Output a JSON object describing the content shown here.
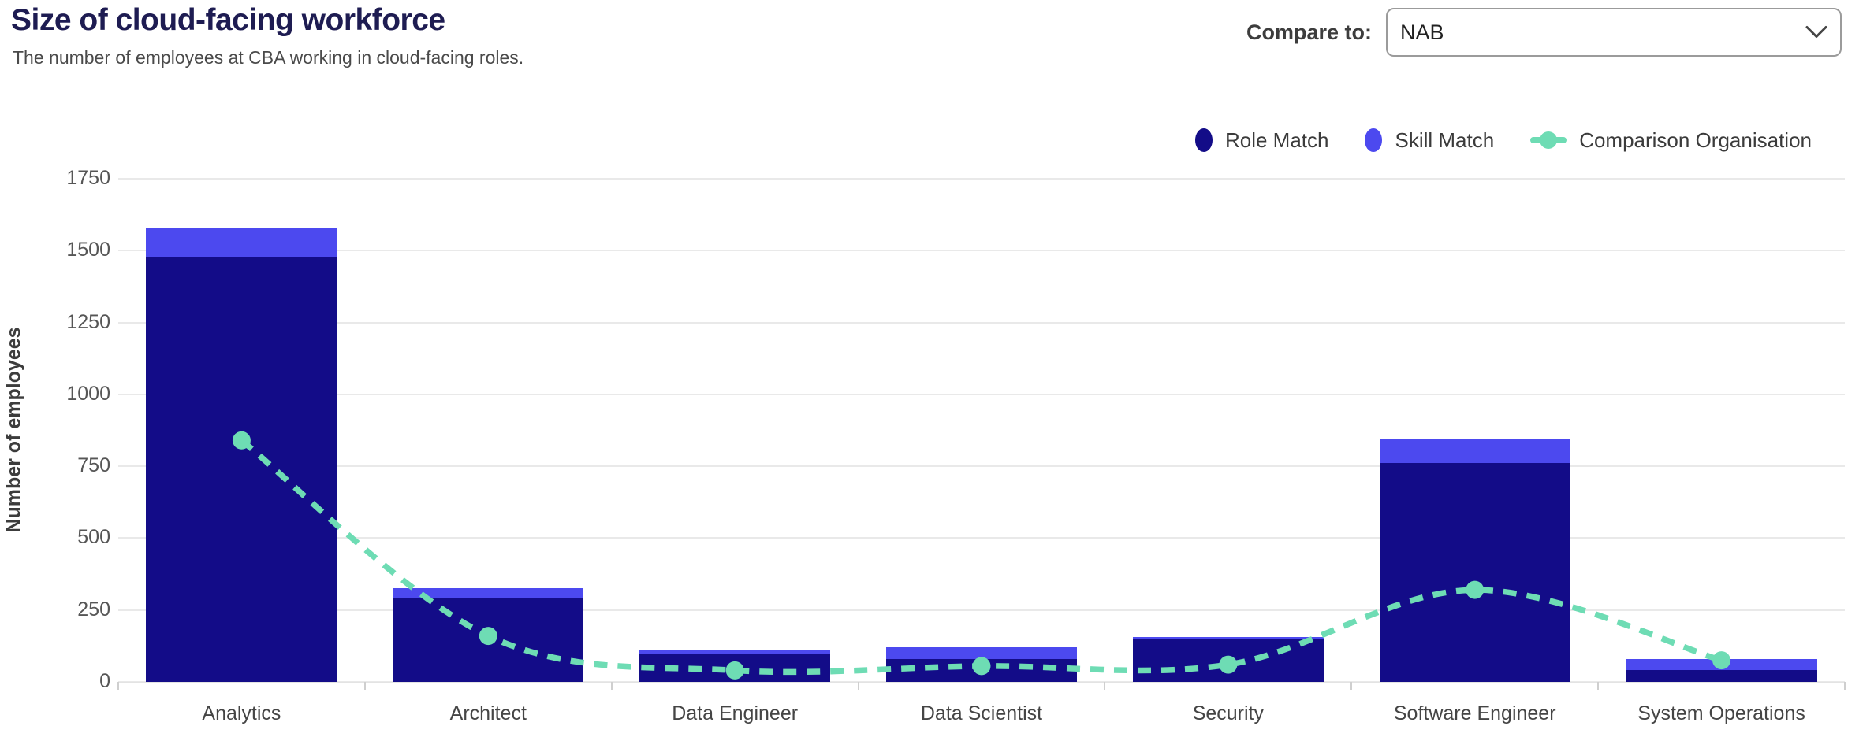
{
  "header": {
    "title": "Size of cloud-facing workforce",
    "subtitle": "The number of employees at CBA working in cloud-facing roles.",
    "compare_label": "Compare to:",
    "compare_value": "NAB"
  },
  "legend": [
    {
      "label": "Role Match",
      "color": "#130c88",
      "marker": "circle"
    },
    {
      "label": "Skill Match",
      "color": "#4c49ef",
      "marker": "circle"
    },
    {
      "label": "Comparison Organisation",
      "color": "#6edcb4",
      "marker": "line-dot"
    }
  ],
  "chart_data": {
    "type": "bar",
    "stacked": true,
    "categories": [
      "Analytics",
      "Architect",
      "Data Engineer",
      "Data Scientist",
      "Security",
      "Software Engineer",
      "System Operations"
    ],
    "series": [
      {
        "name": "Role Match",
        "type": "bar",
        "color": "#130c88",
        "values": [
          1480,
          290,
          95,
          80,
          150,
          760,
          40
        ]
      },
      {
        "name": "Skill Match",
        "type": "bar",
        "color": "#4c49ef",
        "values": [
          100,
          35,
          15,
          40,
          5,
          85,
          40
        ]
      },
      {
        "name": "Comparison Organisation",
        "type": "line",
        "style": "dashed",
        "color": "#6edcb4",
        "values": [
          840,
          160,
          40,
          55,
          60,
          320,
          75
        ]
      }
    ],
    "title": "Size of cloud-facing workforce",
    "xlabel": "",
    "ylabel": "Number of employees",
    "yticks": [
      0,
      250,
      500,
      750,
      1000,
      1250,
      1500,
      1750
    ],
    "ylim": [
      0,
      1850
    ],
    "grid": true,
    "legend_position": "top-right"
  }
}
